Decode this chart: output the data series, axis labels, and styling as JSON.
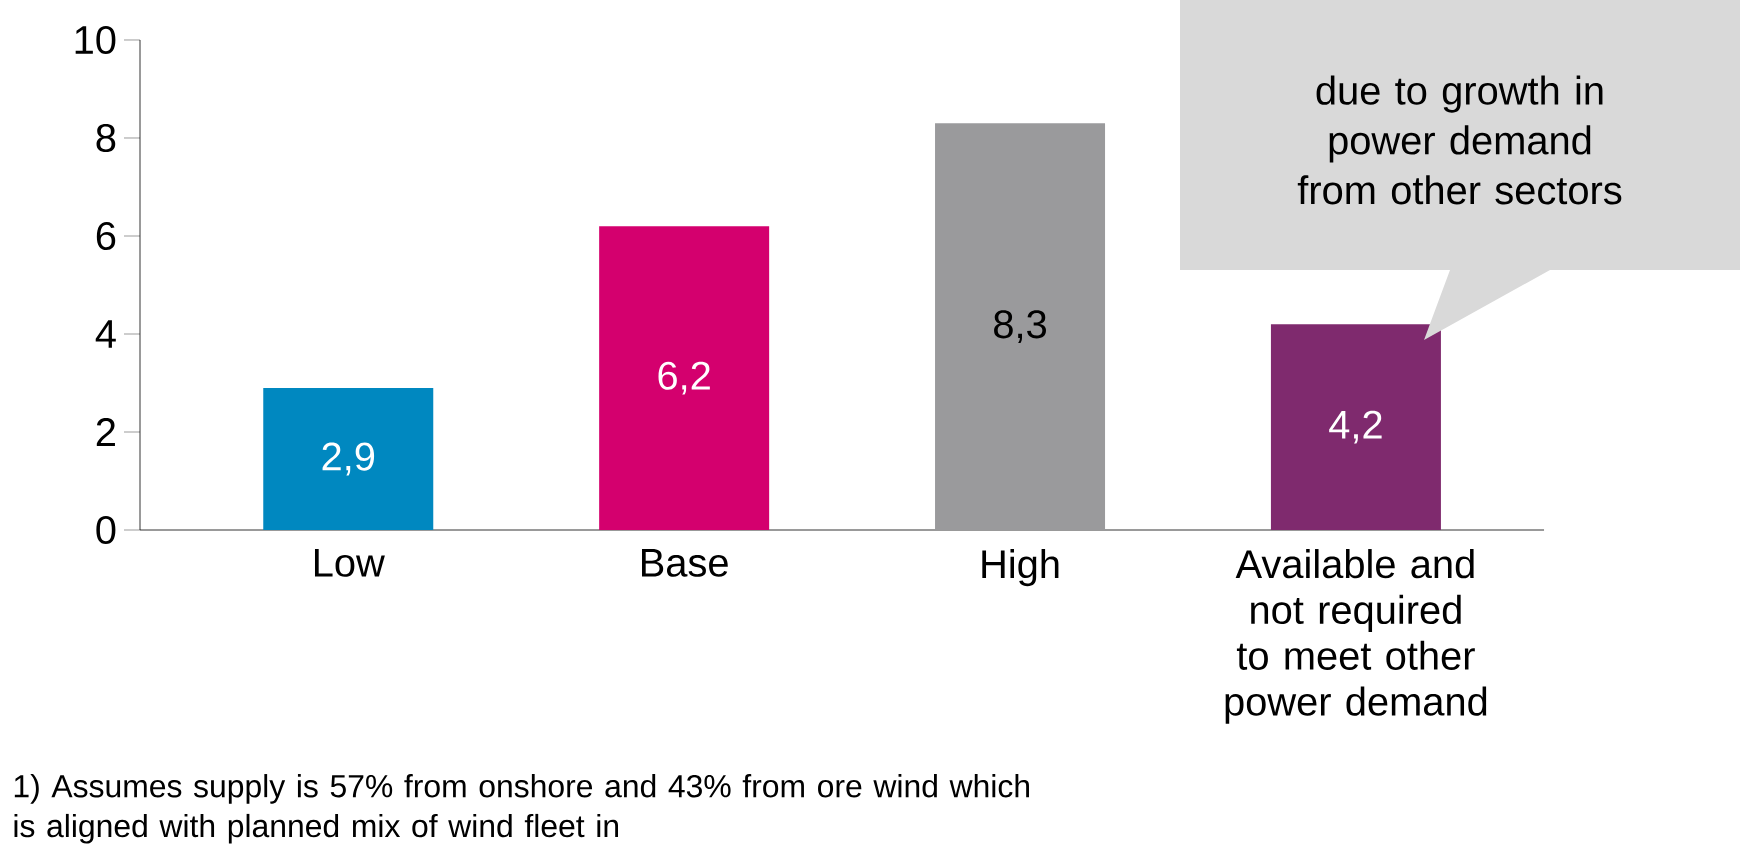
{
  "chart_data": {
    "type": "bar",
    "categories": [
      "Low",
      "Base",
      "High",
      "Available and not required to meet other power demand"
    ],
    "values": [
      2.9,
      6.2,
      8.3,
      4.2
    ],
    "colors": [
      "#0088c0",
      "#d4006e",
      "#9a9a9c",
      "#7f2a6e"
    ],
    "value_labels": [
      "2,9",
      "6,2",
      "8,3",
      "4,2"
    ],
    "ylim": [
      0,
      10
    ],
    "yticks": [
      0,
      2,
      4,
      6,
      8,
      10
    ],
    "grid": false,
    "annotations": [
      "due to growth in power demand from other sectors",
      "1) Assumes supply is 57% from onshore and 43% from ore wind which is aligned with planned mix of wind fleet in"
    ]
  }
}
